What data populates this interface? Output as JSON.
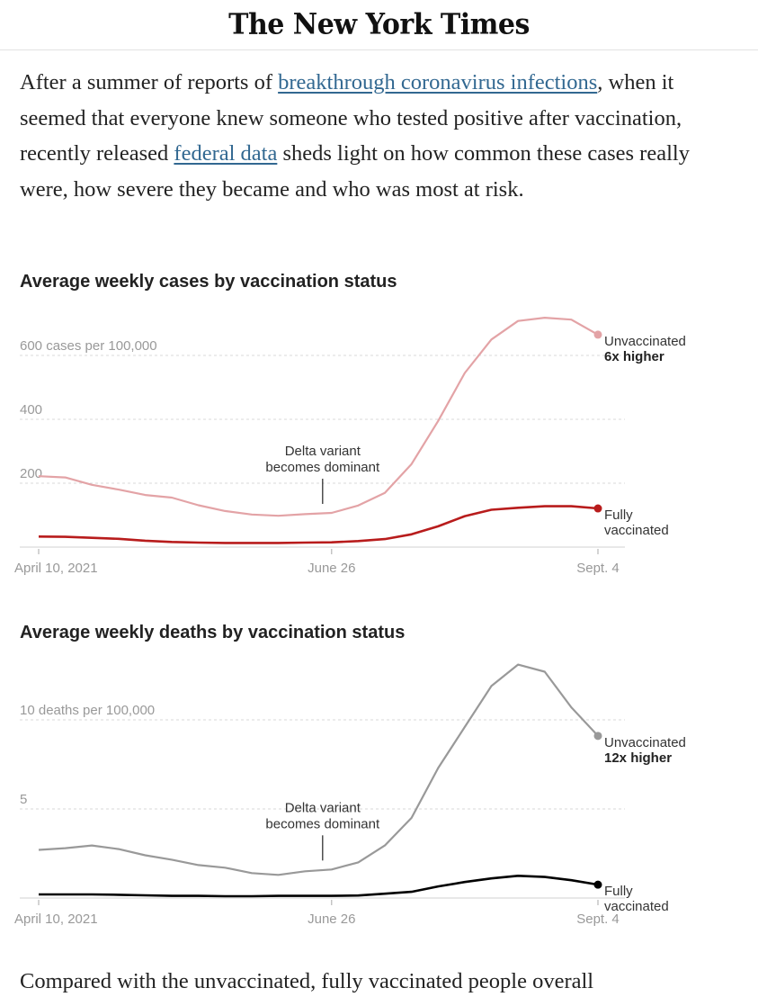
{
  "masthead": {
    "logo": "The New York Times"
  },
  "lede": {
    "part1": "After a summer of reports of ",
    "link1": "breakthrough coronavirus infections",
    "part2": ", when it seemed that everyone knew someone who tested positive after vaccination, recently released ",
    "link2": "federal data",
    "part3": " sheds light on how common these cases really were, how severe they became and who was most at risk."
  },
  "tail_text": "Compared with the unvaccinated, fully vaccinated people overall",
  "colors": {
    "cases_unvaccinated": "#e3a3a6",
    "cases_vaccinated": "#b81c1c",
    "deaths_unvaccinated": "#999999",
    "deaths_vaccinated": "#000000",
    "link": "#326891"
  },
  "chart_data": [
    {
      "type": "line",
      "title": "Average weekly cases by vaccination status",
      "xlabel": "",
      "ylabel": "cases per 100,000",
      "ylim": [
        0,
        700
      ],
      "yticks": [
        {
          "value": 200,
          "label": "200"
        },
        {
          "value": 400,
          "label": "400"
        },
        {
          "value": 600,
          "label": "600 cases per 100,000"
        }
      ],
      "xticks": [
        {
          "index": 0,
          "label": "April 10, 2021"
        },
        {
          "index": 11,
          "label": "June 26"
        },
        {
          "index": 21,
          "label": "Sept. 4"
        }
      ],
      "grid": true,
      "x": [
        "Apr 10",
        "Apr 17",
        "Apr 24",
        "May 1",
        "May 8",
        "May 15",
        "May 22",
        "May 29",
        "Jun 5",
        "Jun 12",
        "Jun 19",
        "Jun 26",
        "Jul 3",
        "Jul 10",
        "Jul 17",
        "Jul 24",
        "Jul 31",
        "Aug 7",
        "Aug 14",
        "Aug 21",
        "Aug 28",
        "Sept 4"
      ],
      "series": [
        {
          "name": "Unvaccinated",
          "annotation": "6x higher",
          "values": [
            222,
            218,
            195,
            180,
            163,
            155,
            131,
            113,
            102,
            98,
            103,
            107,
            130,
            170,
            260,
            395,
            545,
            650,
            708,
            718,
            712,
            665
          ]
        },
        {
          "name": "Fully vaccinated",
          "values": [
            33,
            32,
            29,
            26,
            20,
            16,
            14,
            13,
            13,
            13,
            14,
            15,
            19,
            25,
            40,
            65,
            97,
            117,
            123,
            128,
            128,
            121
          ]
        }
      ],
      "annotations": [
        {
          "index": 11,
          "text_line1": "Delta variant",
          "text_line2": "becomes dominant"
        }
      ]
    },
    {
      "type": "line",
      "title": "Average weekly deaths by vaccination status",
      "xlabel": "",
      "ylabel": "deaths per 100,000",
      "ylim": [
        0,
        13.5
      ],
      "yticks": [
        {
          "value": 5,
          "label": "5"
        },
        {
          "value": 10,
          "label": "10 deaths per 100,000"
        }
      ],
      "xticks": [
        {
          "index": 0,
          "label": "April 10, 2021"
        },
        {
          "index": 11,
          "label": "June 26"
        },
        {
          "index": 21,
          "label": "Sept. 4"
        }
      ],
      "grid": true,
      "x": [
        "Apr 10",
        "Apr 17",
        "Apr 24",
        "May 1",
        "May 8",
        "May 15",
        "May 22",
        "May 29",
        "Jun 5",
        "Jun 12",
        "Jun 19",
        "Jun 26",
        "Jul 3",
        "Jul 10",
        "Jul 17",
        "Jul 24",
        "Jul 31",
        "Aug 7",
        "Aug 14",
        "Aug 21",
        "Aug 28",
        "Sept 4"
      ],
      "series": [
        {
          "name": "Unvaccinated",
          "annotation": "12x higher",
          "values": [
            2.7,
            2.8,
            2.95,
            2.75,
            2.4,
            2.15,
            1.85,
            1.7,
            1.4,
            1.3,
            1.5,
            1.6,
            2.0,
            2.95,
            4.5,
            7.3,
            9.6,
            11.9,
            13.1,
            12.7,
            10.7,
            9.1
          ]
        },
        {
          "name": "Fully vaccinated",
          "values": [
            0.2,
            0.2,
            0.2,
            0.18,
            0.15,
            0.12,
            0.12,
            0.1,
            0.1,
            0.12,
            0.12,
            0.12,
            0.14,
            0.24,
            0.35,
            0.65,
            0.9,
            1.1,
            1.25,
            1.18,
            1.0,
            0.75
          ]
        }
      ],
      "annotations": [
        {
          "index": 11,
          "text_line1": "Delta variant",
          "text_line2": "becomes dominant"
        }
      ]
    }
  ]
}
